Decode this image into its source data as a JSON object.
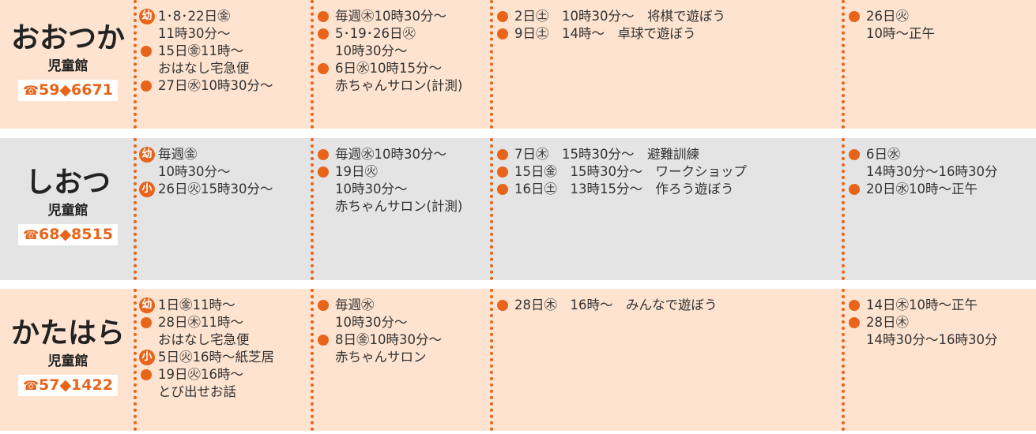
{
  "rows": [
    {
      "name": "おおつか",
      "facility": "児童館",
      "tel": "59◆6671",
      "cells": [
        [
          {
            "badge": "幼",
            "lines": [
              "1･8･22日㊎",
              "11時30分～"
            ]
          },
          {
            "lines": [
              "15日㊎11時～",
              "おはなし宅急便"
            ]
          },
          {
            "lines": [
              "27日㊌10時30分～"
            ]
          }
        ],
        [
          {
            "lines": [
              "毎週㊍10時30分～"
            ]
          },
          {
            "lines": [
              "5･19･26日㊋",
              "10時30分～"
            ]
          },
          {
            "lines": [
              "6日㊌10時15分～",
              "赤ちゃんサロン(計測)"
            ]
          }
        ],
        [
          {
            "lines": [
              "2日㊏　10時30分～　将棋で遊ぼう"
            ]
          },
          {
            "lines": [
              "9日㊏　14時～　卓球で遊ぼう"
            ]
          }
        ],
        [
          {
            "lines": [
              "26日㊋",
              "10時～正午"
            ]
          }
        ]
      ]
    },
    {
      "name": "しおつ",
      "facility": "児童館",
      "tel": "68◆8515",
      "cells": [
        [
          {
            "badge": "幼",
            "lines": [
              "毎週㊎",
              "10時30分～"
            ]
          },
          {
            "badge": "小",
            "lines": [
              "26日㊋15時30分～"
            ]
          }
        ],
        [
          {
            "lines": [
              "毎週㊌10時30分～"
            ]
          },
          {
            "lines": [
              "19日㊋",
              "10時30分～",
              "赤ちゃんサロン(計測)"
            ]
          }
        ],
        [
          {
            "lines": [
              "7日㊍　15時30分～　避難訓練"
            ]
          },
          {
            "lines": [
              "15日㊎　15時30分～　ワークショップ"
            ]
          },
          {
            "lines": [
              "16日㊏　13時15分～　作ろう遊ぼう"
            ]
          }
        ],
        [
          {
            "lines": [
              "6日㊌",
              "14時30分～16時30分"
            ]
          },
          {
            "lines": [
              "20日㊌10時～正午"
            ]
          }
        ]
      ]
    },
    {
      "name": "かたはら",
      "facility": "児童館",
      "tel": "57◆1422",
      "cells": [
        [
          {
            "badge": "幼",
            "lines": [
              "1日㊎11時～"
            ]
          },
          {
            "lines": [
              "28日㊍11時～",
              "おはなし宅急便"
            ]
          },
          {
            "badge": "小",
            "lines": [
              "5日㊋16時～紙芝居"
            ]
          },
          {
            "lines": [
              "19日㊋16時～",
              "とび出せお話"
            ]
          }
        ],
        [
          {
            "lines": [
              "毎週㊌",
              "10時30分～"
            ]
          },
          {
            "lines": [
              "8日㊎10時30分～",
              "赤ちゃんサロン"
            ]
          }
        ],
        [
          {
            "lines": [
              "28日㊍　16時～　みんなで遊ぼう"
            ]
          }
        ],
        [
          {
            "lines": [
              "14日㊍10時～正午"
            ]
          },
          {
            "lines": [
              "28日㊍",
              "14時30分～16時30分"
            ]
          }
        ]
      ]
    }
  ]
}
